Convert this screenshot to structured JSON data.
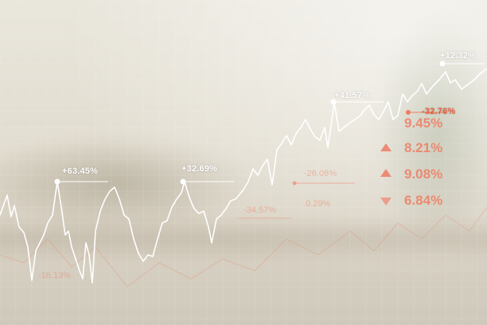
{
  "colors": {
    "line": "#ffffff",
    "accent": "#ef7d63",
    "grid": "#ffffff"
  },
  "callouts": [
    "+63.45%",
    "+32.69%",
    "+41.57%",
    "+12.32%",
    "-32.76%"
  ],
  "tickers": [
    "9.45%",
    "8.21%",
    "9.08%",
    "6.84%"
  ],
  "faded_labels": [
    "-34.57%",
    "-26.08%",
    "-16.13%",
    "0.29%"
  ],
  "arrows": [
    "up",
    "up",
    "down"
  ]
}
